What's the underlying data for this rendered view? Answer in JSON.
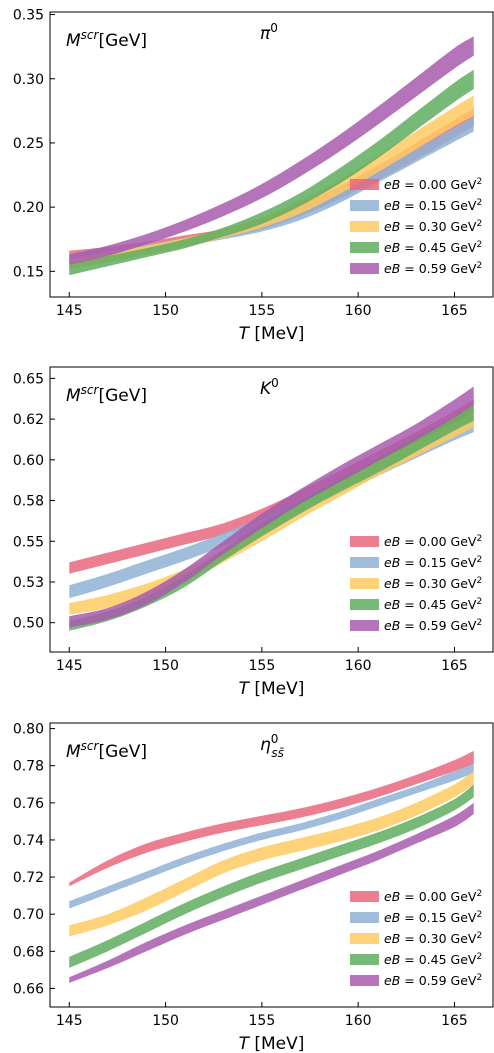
{
  "chart_data": [
    {
      "type": "area",
      "title": "π⁰",
      "title_text": "π",
      "title_sup": "0",
      "ylabel_main": "M",
      "ylabel_sup": "scr",
      "ylabel_rest": "[GeV]",
      "xlabel_main": "T",
      "xlabel_rest": " [MeV]",
      "xlim": [
        144,
        167
      ],
      "ylim": [
        0.13,
        0.352
      ],
      "xticks": [
        145,
        150,
        155,
        160,
        165
      ],
      "xtick_labels": [
        "145",
        "150",
        "155",
        "160",
        "165"
      ],
      "yticks": [
        0.15,
        0.2,
        0.25,
        0.3,
        0.35
      ],
      "ytick_labels": [
        "0.15",
        "0.20",
        "0.25",
        "0.30",
        "0.35"
      ],
      "grid": false,
      "legend_position": "lower-right",
      "x": [
        145,
        147,
        149,
        151,
        153,
        155,
        157,
        159,
        161,
        163,
        165,
        166
      ],
      "series": [
        {
          "name": "eB = 0.00 GeV²",
          "label_pre": "eB",
          "label_mid": " = 0.00 GeV",
          "label_sup": "2",
          "color": "#e8677d",
          "upper": [
            0.166,
            0.169,
            0.173,
            0.178,
            0.183,
            0.191,
            0.202,
            0.216,
            0.232,
            0.25,
            0.268,
            0.277
          ],
          "lower": [
            0.158,
            0.162,
            0.167,
            0.171,
            0.176,
            0.183,
            0.193,
            0.206,
            0.221,
            0.237,
            0.254,
            0.263
          ]
        },
        {
          "name": "eB = 0.15 GeV²",
          "label_pre": "eB",
          "label_mid": " = 0.15 GeV",
          "label_sup": "2",
          "color": "#8fb3d6",
          "upper": [
            0.163,
            0.167,
            0.171,
            0.176,
            0.181,
            0.188,
            0.199,
            0.213,
            0.229,
            0.245,
            0.262,
            0.27
          ],
          "lower": [
            0.156,
            0.161,
            0.166,
            0.17,
            0.175,
            0.181,
            0.19,
            0.203,
            0.219,
            0.235,
            0.251,
            0.259
          ]
        },
        {
          "name": "eB = 0.30 GeV²",
          "label_pre": "eB",
          "label_mid": " = 0.30 GeV",
          "label_sup": "2",
          "color": "#fdca61",
          "upper": [
            0.16,
            0.165,
            0.17,
            0.176,
            0.183,
            0.192,
            0.205,
            0.221,
            0.24,
            0.259,
            0.278,
            0.287
          ],
          "lower": [
            0.152,
            0.157,
            0.163,
            0.169,
            0.176,
            0.184,
            0.195,
            0.21,
            0.227,
            0.245,
            0.263,
            0.271
          ]
        },
        {
          "name": "eB = 0.45 GeV²",
          "label_pre": "eB",
          "label_mid": " = 0.45 GeV",
          "label_sup": "2",
          "color": "#5fad5f",
          "upper": [
            0.156,
            0.162,
            0.168,
            0.175,
            0.184,
            0.196,
            0.211,
            0.23,
            0.251,
            0.274,
            0.297,
            0.307
          ],
          "lower": [
            0.147,
            0.154,
            0.161,
            0.168,
            0.177,
            0.187,
            0.201,
            0.218,
            0.238,
            0.26,
            0.282,
            0.292
          ]
        },
        {
          "name": "eB = 0.59 GeV²",
          "label_pre": "eB",
          "label_mid": " = 0.59 GeV",
          "label_sup": "2",
          "color": "#a85aad",
          "upper": [
            0.163,
            0.17,
            0.179,
            0.19,
            0.203,
            0.218,
            0.236,
            0.256,
            0.278,
            0.301,
            0.324,
            0.333
          ],
          "lower": [
            0.155,
            0.162,
            0.171,
            0.181,
            0.193,
            0.207,
            0.224,
            0.243,
            0.264,
            0.286,
            0.308,
            0.318
          ]
        }
      ]
    },
    {
      "type": "area",
      "title": "K⁰",
      "title_text": "K",
      "title_sup": "0",
      "ylabel_main": "M",
      "ylabel_sup": "scr",
      "ylabel_rest": "[GeV]",
      "xlabel_main": "T",
      "xlabel_rest": " [MeV]",
      "xlim": [
        144,
        167
      ],
      "ylim": [
        0.482,
        0.657
      ],
      "xticks": [
        145,
        150,
        155,
        160,
        165
      ],
      "xtick_labels": [
        "145",
        "150",
        "155",
        "160",
        "165"
      ],
      "yticks": [
        0.5,
        0.525,
        0.55,
        0.575,
        0.6,
        0.625,
        0.65
      ],
      "ytick_labels": [
        "0.50",
        "0.53",
        "0.55",
        "0.58",
        "0.60",
        "0.62",
        "0.65"
      ],
      "grid": false,
      "legend_position": "lower-right",
      "x": [
        145,
        147,
        149,
        151,
        153,
        155,
        157,
        159,
        161,
        163,
        165,
        166
      ],
      "series": [
        {
          "name": "eB = 0.00 GeV²",
          "label_pre": "eB",
          "label_mid": " = 0.00 GeV",
          "label_sup": "2",
          "color": "#e8677d",
          "upper": [
            0.537,
            0.543,
            0.549,
            0.555,
            0.561,
            0.57,
            0.581,
            0.593,
            0.605,
            0.617,
            0.63,
            0.637
          ],
          "lower": [
            0.53,
            0.536,
            0.542,
            0.548,
            0.554,
            0.563,
            0.574,
            0.585,
            0.597,
            0.609,
            0.621,
            0.628
          ]
        },
        {
          "name": "eB = 0.15 GeV²",
          "label_pre": "eB",
          "label_mid": " = 0.15 GeV",
          "label_sup": "2",
          "color": "#8fb3d6",
          "upper": [
            0.523,
            0.53,
            0.538,
            0.546,
            0.555,
            0.565,
            0.576,
            0.588,
            0.599,
            0.61,
            0.621,
            0.627
          ],
          "lower": [
            0.515,
            0.522,
            0.53,
            0.538,
            0.547,
            0.557,
            0.568,
            0.579,
            0.59,
            0.601,
            0.612,
            0.617
          ]
        },
        {
          "name": "eB = 0.30 GeV²",
          "label_pre": "eB",
          "label_mid": " = 0.30 GeV",
          "label_sup": "2",
          "color": "#fdca61",
          "upper": [
            0.512,
            0.517,
            0.524,
            0.533,
            0.545,
            0.558,
            0.572,
            0.586,
            0.599,
            0.611,
            0.623,
            0.63
          ],
          "lower": [
            0.505,
            0.509,
            0.516,
            0.525,
            0.537,
            0.55,
            0.564,
            0.577,
            0.59,
            0.602,
            0.614,
            0.62
          ]
        },
        {
          "name": "eB = 0.45 GeV²",
          "label_pre": "eB",
          "label_mid": " = 0.45 GeV",
          "label_sup": "2",
          "color": "#5fad5f",
          "upper": [
            0.501,
            0.507,
            0.516,
            0.529,
            0.545,
            0.561,
            0.575,
            0.588,
            0.601,
            0.614,
            0.627,
            0.634
          ],
          "lower": [
            0.495,
            0.501,
            0.51,
            0.522,
            0.538,
            0.553,
            0.567,
            0.58,
            0.592,
            0.605,
            0.618,
            0.624
          ]
        },
        {
          "name": "eB = 0.59 GeV²",
          "label_pre": "eB",
          "label_mid": " = 0.59 GeV",
          "label_sup": "2",
          "color": "#a85aad",
          "upper": [
            0.504,
            0.509,
            0.519,
            0.533,
            0.55,
            0.567,
            0.582,
            0.596,
            0.609,
            0.622,
            0.637,
            0.645
          ],
          "lower": [
            0.497,
            0.502,
            0.511,
            0.525,
            0.542,
            0.558,
            0.573,
            0.586,
            0.599,
            0.612,
            0.626,
            0.634
          ]
        }
      ]
    },
    {
      "type": "area",
      "title": "η⁰ₛₛ̄",
      "title_text": "η",
      "title_sup": "0",
      "title_sub": "ss̄",
      "ylabel_main": "M",
      "ylabel_sup": "scr",
      "ylabel_rest": "[GeV]",
      "xlabel_main": "T",
      "xlabel_rest": " [MeV]",
      "xlim": [
        144,
        167
      ],
      "ylim": [
        0.65,
        0.803
      ],
      "xticks": [
        145,
        150,
        155,
        160,
        165
      ],
      "xtick_labels": [
        "145",
        "150",
        "155",
        "160",
        "165"
      ],
      "yticks": [
        0.66,
        0.68,
        0.7,
        0.72,
        0.74,
        0.76,
        0.78,
        0.8
      ],
      "ytick_labels": [
        "0.66",
        "0.68",
        "0.70",
        "0.72",
        "0.74",
        "0.76",
        "0.78",
        "0.80"
      ],
      "grid": false,
      "legend_position": "lower-right",
      "x": [
        145,
        147,
        149,
        151,
        153,
        155,
        157,
        159,
        161,
        163,
        165,
        166
      ],
      "series": [
        {
          "name": "eB = 0.00 GeV²",
          "label_pre": "eB",
          "label_mid": " = 0.00 GeV",
          "label_sup": "2",
          "color": "#e8677d",
          "upper": [
            0.717,
            0.729,
            0.738,
            0.744,
            0.749,
            0.753,
            0.757,
            0.762,
            0.768,
            0.775,
            0.783,
            0.788
          ],
          "lower": [
            0.715,
            0.725,
            0.733,
            0.739,
            0.744,
            0.748,
            0.752,
            0.757,
            0.763,
            0.77,
            0.777,
            0.781
          ]
        },
        {
          "name": "eB = 0.15 GeV²",
          "label_pre": "eB",
          "label_mid": " = 0.15 GeV",
          "label_sup": "2",
          "color": "#8fb3d6",
          "upper": [
            0.707,
            0.715,
            0.723,
            0.731,
            0.738,
            0.744,
            0.749,
            0.755,
            0.762,
            0.769,
            0.777,
            0.781
          ],
          "lower": [
            0.703,
            0.711,
            0.719,
            0.727,
            0.734,
            0.74,
            0.745,
            0.751,
            0.758,
            0.765,
            0.772,
            0.776
          ]
        },
        {
          "name": "eB = 0.30 GeV²",
          "label_pre": "eB",
          "label_mid": " = 0.30 GeV",
          "label_sup": "2",
          "color": "#fdca61",
          "upper": [
            0.694,
            0.7,
            0.709,
            0.719,
            0.729,
            0.736,
            0.741,
            0.746,
            0.752,
            0.76,
            0.77,
            0.777
          ],
          "lower": [
            0.688,
            0.694,
            0.702,
            0.712,
            0.722,
            0.729,
            0.734,
            0.739,
            0.745,
            0.753,
            0.763,
            0.77
          ]
        },
        {
          "name": "eB = 0.45 GeV²",
          "label_pre": "eB",
          "label_mid": " = 0.45 GeV",
          "label_sup": "2",
          "color": "#5fad5f",
          "upper": [
            0.677,
            0.686,
            0.696,
            0.706,
            0.715,
            0.723,
            0.73,
            0.737,
            0.744,
            0.752,
            0.762,
            0.77
          ],
          "lower": [
            0.671,
            0.68,
            0.69,
            0.7,
            0.709,
            0.717,
            0.724,
            0.731,
            0.738,
            0.746,
            0.756,
            0.763
          ]
        },
        {
          "name": "eB = 0.59 GeV²",
          "label_pre": "eB",
          "label_mid": " = 0.59 GeV",
          "label_sup": "2",
          "color": "#a85aad",
          "upper": [
            0.666,
            0.675,
            0.685,
            0.694,
            0.702,
            0.71,
            0.718,
            0.726,
            0.734,
            0.743,
            0.753,
            0.76
          ],
          "lower": [
            0.663,
            0.671,
            0.68,
            0.689,
            0.697,
            0.705,
            0.713,
            0.721,
            0.729,
            0.738,
            0.747,
            0.754
          ]
        }
      ]
    }
  ]
}
